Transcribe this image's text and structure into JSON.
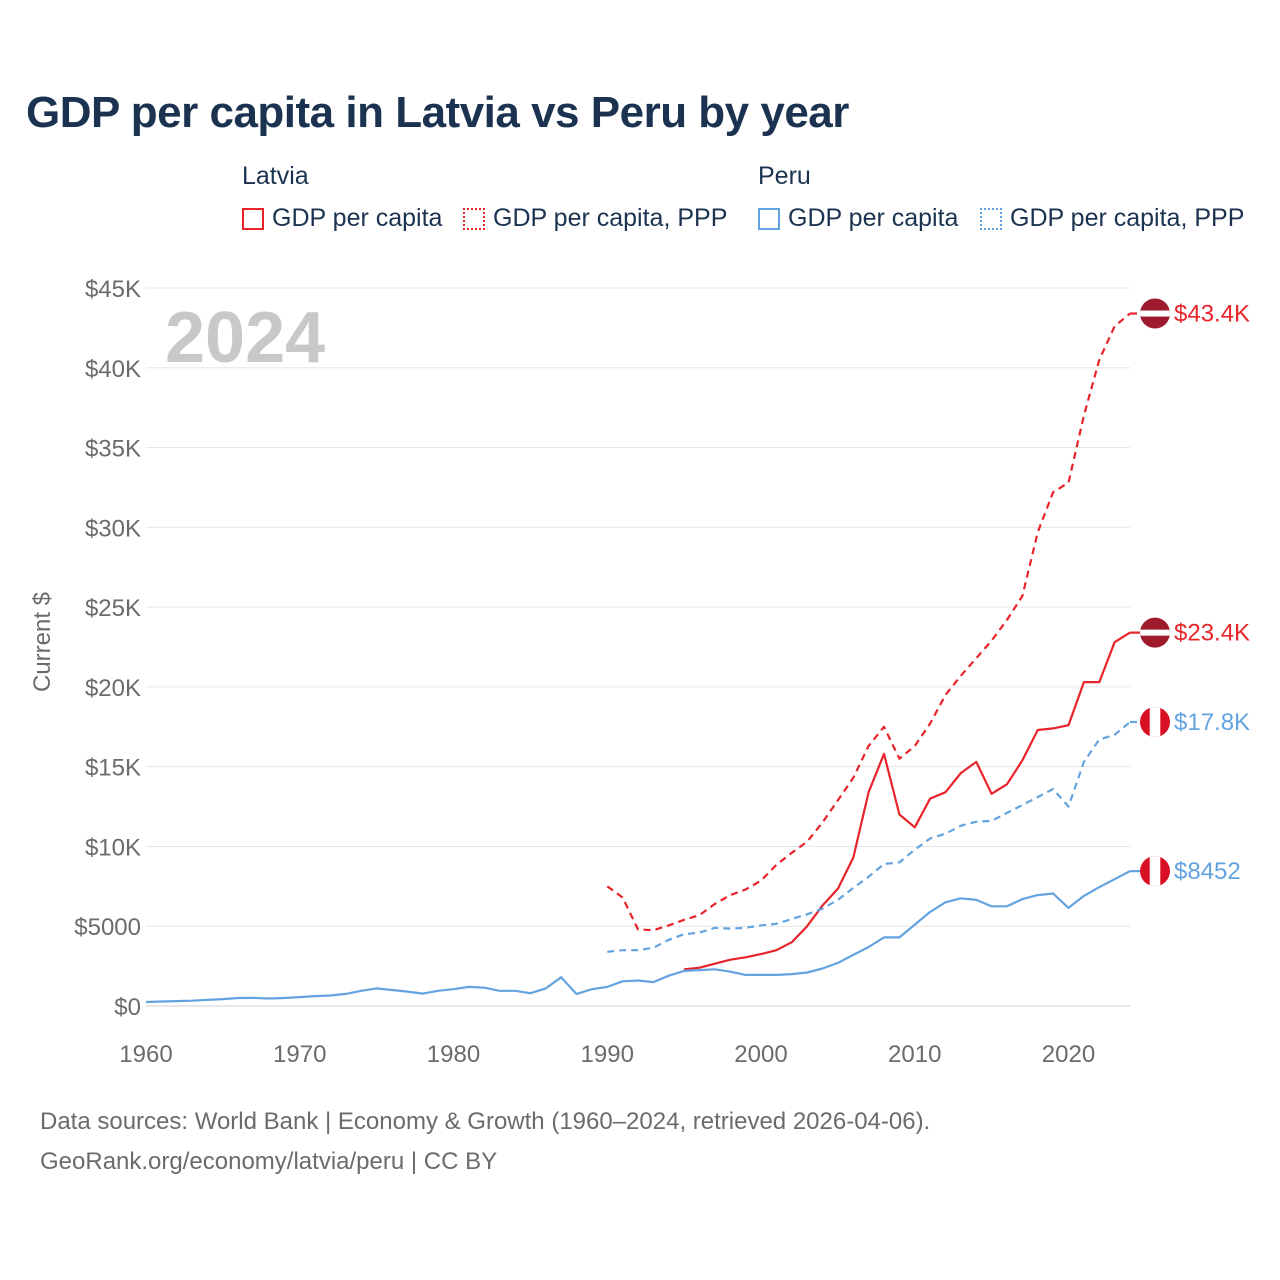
{
  "title": "GDP per capita in Latvia vs Peru by year",
  "legend": {
    "groups": [
      {
        "name": "Latvia",
        "items": [
          {
            "label": "GDP per capita",
            "style": "solid",
            "color": "#e8242a"
          },
          {
            "label": "GDP per capita, PPP",
            "style": "dotted",
            "color": "#e8242a"
          }
        ]
      },
      {
        "name": "Peru",
        "items": [
          {
            "label": "GDP per capita",
            "style": "solid",
            "color": "#63a3e0"
          },
          {
            "label": "GDP per capita, PPP",
            "style": "dotted",
            "color": "#63a3e0"
          }
        ]
      }
    ]
  },
  "footer": {
    "line1": "Data sources: World Bank | Economy & Growth (1960–2024, retrieved 2026-04-06).",
    "line2": "GeoRank.org/economy/latvia/peru | CC BY"
  },
  "chart_data": {
    "type": "line",
    "title": "GDP per capita in Latvia vs Peru by year",
    "ylabel": "Current $",
    "xlabel": "",
    "year_watermark": "2024",
    "xlim": [
      1960,
      2024
    ],
    "ylim": [
      0,
      45000
    ],
    "x_ticks": [
      1960,
      1970,
      1980,
      1990,
      2000,
      2010,
      2020
    ],
    "y_ticks": [
      {
        "value": 0,
        "label": "$0"
      },
      {
        "value": 5000,
        "label": "$5000"
      },
      {
        "value": 10000,
        "label": "$10K"
      },
      {
        "value": 15000,
        "label": "$15K"
      },
      {
        "value": 20000,
        "label": "$20K"
      },
      {
        "value": 25000,
        "label": "$25K"
      },
      {
        "value": 30000,
        "label": "$30K"
      },
      {
        "value": 35000,
        "label": "$35K"
      },
      {
        "value": 40000,
        "label": "$40K"
      },
      {
        "value": 45000,
        "label": "$45K"
      }
    ],
    "series": [
      {
        "name": "Latvia GDP per capita",
        "country": "Latvia",
        "color": "#e8242a",
        "dash": "solid",
        "end_label": "$23.4K",
        "flag": "latvia",
        "x": [
          1995,
          1996,
          1997,
          1998,
          1999,
          2000,
          2001,
          2002,
          2003,
          2004,
          2005,
          2006,
          2007,
          2008,
          2009,
          2010,
          2011,
          2012,
          2013,
          2014,
          2015,
          2016,
          2017,
          2018,
          2019,
          2020,
          2021,
          2022,
          2023,
          2024
        ],
        "y": [
          2300,
          2400,
          2650,
          2900,
          3050,
          3250,
          3500,
          4000,
          5000,
          6300,
          7350,
          9300,
          13400,
          15800,
          12000,
          11200,
          13000,
          13400,
          14600,
          15300,
          13300,
          13900,
          15400,
          17300,
          17400,
          17600,
          20300,
          20300,
          22800,
          23400
        ]
      },
      {
        "name": "Latvia GDP per capita, PPP",
        "country": "Latvia",
        "color": "#e8242a",
        "dash": "dashed",
        "end_label": "$43.4K",
        "flag": "latvia",
        "x": [
          1990,
          1991,
          1992,
          1993,
          1994,
          1995,
          1996,
          1997,
          1998,
          1999,
          2000,
          2001,
          2002,
          2003,
          2004,
          2005,
          2006,
          2007,
          2008,
          2009,
          2010,
          2011,
          2012,
          2013,
          2014,
          2015,
          2016,
          2017,
          2018,
          2019,
          2020,
          2021,
          2022,
          2023,
          2024
        ],
        "y": [
          7500,
          6800,
          4800,
          4750,
          5050,
          5400,
          5700,
          6400,
          6950,
          7300,
          7850,
          8850,
          9600,
          10300,
          11500,
          12900,
          14300,
          16300,
          17500,
          15500,
          16300,
          17700,
          19500,
          20700,
          21800,
          22900,
          24200,
          25700,
          29700,
          32200,
          32800,
          37000,
          40500,
          42600,
          43400
        ]
      },
      {
        "name": "Peru GDP per capita",
        "country": "Peru",
        "color": "#63a3e0",
        "dash": "solid",
        "end_label": "$8452",
        "flag": "peru",
        "x": [
          1960,
          1961,
          1962,
          1963,
          1964,
          1965,
          1966,
          1967,
          1968,
          1969,
          1970,
          1971,
          1972,
          1973,
          1974,
          1975,
          1976,
          1977,
          1978,
          1979,
          1980,
          1981,
          1982,
          1983,
          1984,
          1985,
          1986,
          1987,
          1988,
          1989,
          1990,
          1991,
          1992,
          1993,
          1994,
          1995,
          1996,
          1997,
          1998,
          1999,
          2000,
          2001,
          2002,
          2003,
          2004,
          2005,
          2006,
          2007,
          2008,
          2009,
          2010,
          2011,
          2012,
          2013,
          2014,
          2015,
          2016,
          2017,
          2018,
          2019,
          2020,
          2021,
          2022,
          2023,
          2024
        ],
        "y": [
          250,
          280,
          310,
          330,
          380,
          430,
          500,
          510,
          470,
          500,
          560,
          620,
          660,
          760,
          950,
          1100,
          1000,
          900,
          780,
          950,
          1050,
          1200,
          1150,
          950,
          950,
          800,
          1100,
          1800,
          750,
          1050,
          1200,
          1550,
          1600,
          1500,
          1900,
          2200,
          2250,
          2300,
          2150,
          1950,
          1950,
          1950,
          2000,
          2100,
          2350,
          2700,
          3200,
          3700,
          4300,
          4300,
          5100,
          5900,
          6500,
          6750,
          6650,
          6250,
          6250,
          6700,
          6950,
          7050,
          6150,
          6900,
          7450,
          7950,
          8452
        ]
      },
      {
        "name": "Peru GDP per capita, PPP",
        "country": "Peru",
        "color": "#63a3e0",
        "dash": "dashed",
        "end_label": "$17.8K",
        "flag": "peru",
        "x": [
          1990,
          1991,
          1992,
          1993,
          1994,
          1995,
          1996,
          1997,
          1998,
          1999,
          2000,
          2001,
          2002,
          2003,
          2004,
          2005,
          2006,
          2007,
          2008,
          2009,
          2010,
          2011,
          2012,
          2013,
          2014,
          2015,
          2016,
          2017,
          2018,
          2019,
          2020,
          2021,
          2022,
          2023,
          2024
        ],
        "y": [
          3400,
          3500,
          3500,
          3650,
          4150,
          4500,
          4600,
          4900,
          4850,
          4900,
          5050,
          5150,
          5450,
          5750,
          6100,
          6650,
          7400,
          8100,
          8900,
          9000,
          9800,
          10500,
          10800,
          11300,
          11550,
          11600,
          12100,
          12600,
          13100,
          13600,
          12500,
          15300,
          16700,
          17000,
          17800
        ]
      }
    ]
  }
}
